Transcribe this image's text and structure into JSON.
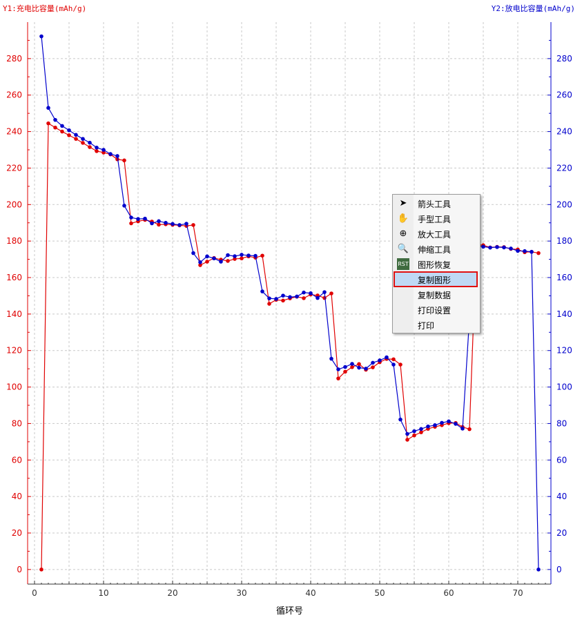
{
  "y1_axis_label": "Y1:充电比容量(mAh/g)",
  "y2_axis_label": "Y2:放电比容量(mAh/g)",
  "x_axis_label": "循环号",
  "colors": {
    "charge": "#e00000",
    "discharge": "#0000cc",
    "grid": "#c8c8c8"
  },
  "context_menu": {
    "items": [
      {
        "label": "箭头工具",
        "icon": "arrow-cursor-icon"
      },
      {
        "label": "手型工具",
        "icon": "hand-icon"
      },
      {
        "label": "放大工具",
        "icon": "zoom-in-icon"
      },
      {
        "label": "伸缩工具",
        "icon": "zoom-stretch-icon"
      },
      {
        "label": "图形恢复",
        "icon": "reset-rst-icon"
      },
      {
        "label": "复制图形",
        "icon": "",
        "selected": true
      },
      {
        "label": "复制数据",
        "icon": ""
      },
      {
        "label": "打印设置",
        "icon": ""
      },
      {
        "label": "打印",
        "icon": ""
      }
    ]
  },
  "chart_data": {
    "type": "line",
    "title": "",
    "xlabel": "循环号",
    "ylabel": "Y1:充电比容量(mAh/g)",
    "y2label": "Y2:放电比容量(mAh/g)",
    "xlim": [
      -1,
      74.8
    ],
    "ylim": [
      -8,
      300
    ],
    "y2lim": [
      -8,
      300
    ],
    "x_ticks": [
      0,
      10,
      20,
      30,
      40,
      50,
      60,
      70
    ],
    "y_ticks": [
      0,
      20,
      40,
      60,
      80,
      100,
      120,
      140,
      160,
      180,
      200,
      220,
      240,
      260,
      280
    ],
    "grid": true,
    "series": [
      {
        "name": "Y1:充电比容量(mAh/g)",
        "axis": "y1",
        "color": "#e00000",
        "x": [
          1,
          2,
          3,
          4,
          5,
          6,
          7,
          8,
          9,
          10,
          11,
          12,
          13,
          14,
          15,
          16,
          17,
          18,
          19,
          20,
          21,
          22,
          23,
          24,
          25,
          26,
          27,
          28,
          29,
          30,
          31,
          32,
          33,
          34,
          35,
          36,
          37,
          38,
          39,
          40,
          41,
          42,
          43,
          44,
          45,
          46,
          47,
          48,
          49,
          50,
          51,
          52,
          53,
          54,
          55,
          56,
          57,
          58,
          59,
          60,
          61,
          62,
          63,
          64,
          65,
          66,
          67,
          68,
          69,
          70,
          71,
          72,
          73
        ],
        "values": [
          0,
          244.5,
          242.2,
          240,
          238,
          236,
          233.8,
          231.5,
          229.3,
          228.5,
          227.5,
          224.8,
          224.2,
          189.7,
          190.8,
          191.6,
          190.7,
          189,
          189.2,
          188.9,
          188.6,
          188.3,
          188.8,
          166.8,
          168.7,
          170.7,
          169.8,
          169.1,
          170.2,
          170.5,
          171.6,
          170.9,
          172,
          145.6,
          147.8,
          147.4,
          148.6,
          149.5,
          148.7,
          150.7,
          150.2,
          148.8,
          151.3,
          104.7,
          108.4,
          110.9,
          112.6,
          109.5,
          110.8,
          113.6,
          115.4,
          115.2,
          112.3,
          71.1,
          73.5,
          75.2,
          77.1,
          78.2,
          79.1,
          80.2,
          80.3,
          78.1,
          76.9,
          178,
          177.7,
          176.5,
          176.8,
          176.7,
          175.7,
          175.4,
          173.9,
          174.1,
          173.4
        ]
      },
      {
        "name": "Y2:放电比容量(mAh/g)",
        "axis": "y2",
        "color": "#0000cc",
        "x": [
          1,
          2,
          3,
          4,
          5,
          6,
          7,
          8,
          9,
          10,
          11,
          12,
          13,
          14,
          15,
          16,
          17,
          18,
          19,
          20,
          21,
          22,
          23,
          24,
          25,
          26,
          27,
          28,
          29,
          30,
          31,
          32,
          33,
          34,
          35,
          36,
          37,
          38,
          39,
          40,
          41,
          42,
          43,
          44,
          45,
          46,
          47,
          48,
          49,
          50,
          51,
          52,
          53,
          54,
          55,
          56,
          57,
          58,
          59,
          60,
          61,
          62,
          63,
          64,
          65,
          66,
          67,
          68,
          69,
          70,
          71,
          72,
          73
        ],
        "values": [
          292.2,
          253,
          246.4,
          243.1,
          240.7,
          238.2,
          236,
          233.9,
          231.2,
          230,
          227.7,
          226.6,
          199.4,
          192.9,
          192.1,
          192.3,
          189.7,
          190.9,
          190,
          189.4,
          188.8,
          189.5,
          173.4,
          168.4,
          171.6,
          170.5,
          168.7,
          172.3,
          171.7,
          172.5,
          172.1,
          171.9,
          152.4,
          148.6,
          148.3,
          150.1,
          149.3,
          149.6,
          151.8,
          151.4,
          148.8,
          152,
          115.5,
          109.7,
          111,
          112.7,
          110.6,
          110.1,
          113.3,
          114.6,
          116.3,
          112.3,
          82.2,
          74.3,
          75.8,
          77,
          78.4,
          79.1,
          80.4,
          81.2,
          79.8,
          77.2,
          137.5,
          177.3,
          176.9,
          176.4,
          176.7,
          176.5,
          175.9,
          174.6,
          174.5,
          174.1,
          0
        ]
      }
    ]
  }
}
